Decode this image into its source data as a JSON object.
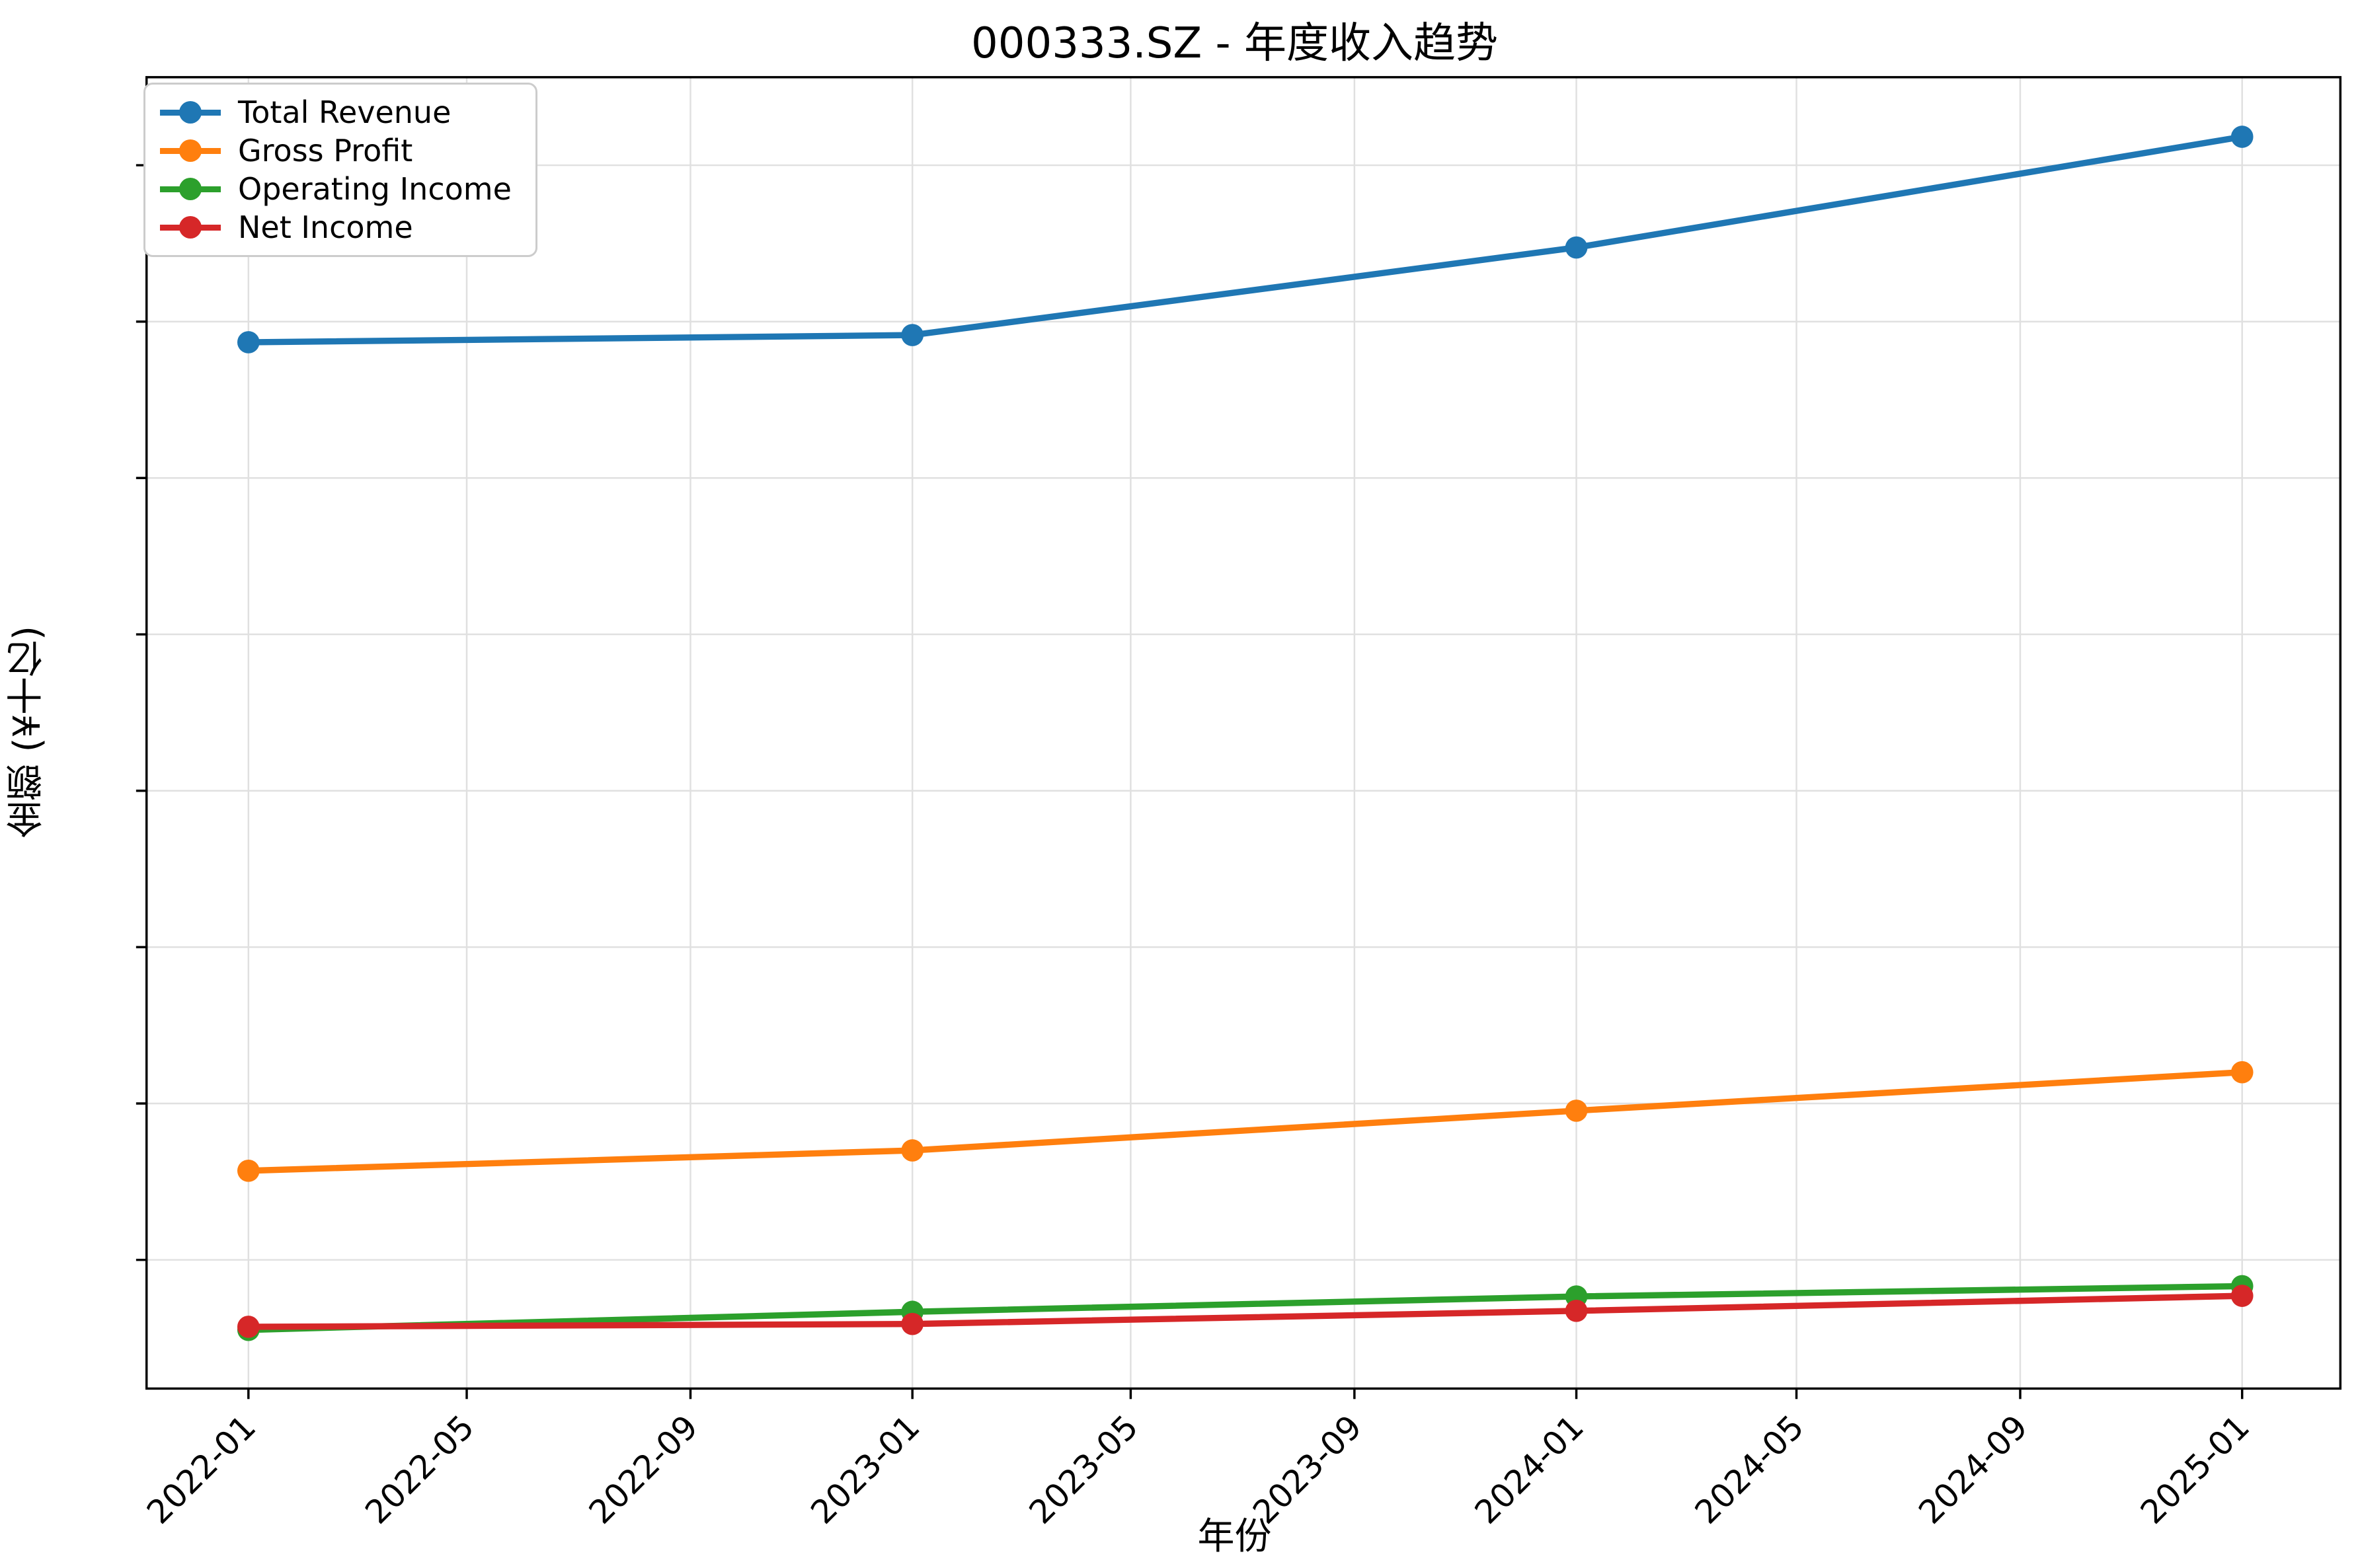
{
  "chart_data": {
    "type": "line",
    "title": "000333.SZ - 年度收入趋势",
    "xlabel": "年份",
    "ylabel": "金额 (¥十亿)",
    "x": [
      "2022-01",
      "2023-01",
      "2024-01",
      "2025-01"
    ],
    "series": [
      {
        "name": "Total Revenue",
        "color": "#1f77b4",
        "values": [
          343.4,
          345.7,
          373.7,
          409.1
        ]
      },
      {
        "name": "Gross Profit",
        "color": "#ff7f0e",
        "values": [
          78.5,
          85.0,
          97.7,
          110.0
        ]
      },
      {
        "name": "Operating Income",
        "color": "#2ca02c",
        "values": [
          27.6,
          33.4,
          38.3,
          41.6
        ]
      },
      {
        "name": "Net Income",
        "color": "#d62728",
        "values": [
          28.6,
          29.5,
          33.7,
          38.5
        ]
      }
    ],
    "yticks": [
      50,
      100,
      150,
      200,
      250,
      300,
      350,
      400
    ],
    "xticks": [
      "2022-01",
      "2022-05",
      "2022-09",
      "2023-01",
      "2023-05",
      "2023-09",
      "2024-01",
      "2024-05",
      "2024-09",
      "2025-01"
    ],
    "ylim": [
      8.85,
      428.15
    ],
    "grid": true,
    "legend_position": "upper left",
    "grid_color": "#e0e0e0",
    "axis_color": "#000000"
  }
}
